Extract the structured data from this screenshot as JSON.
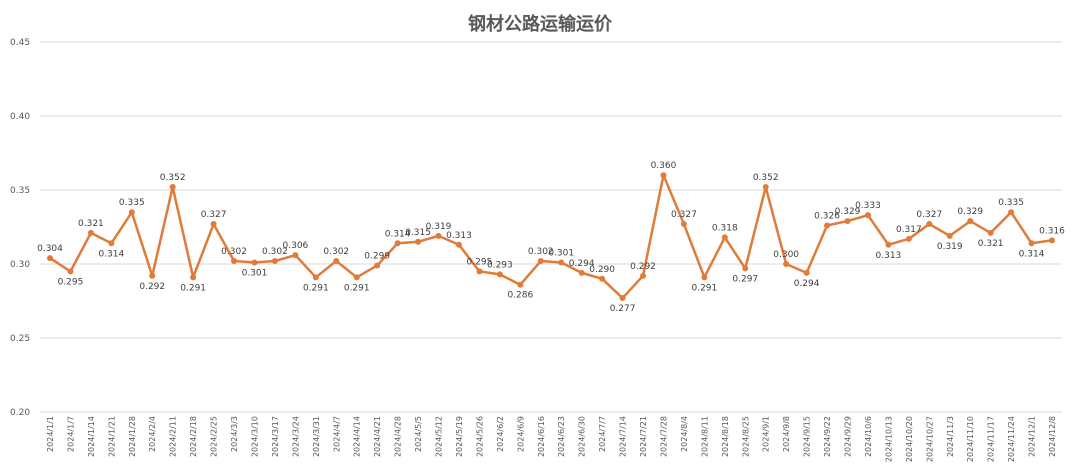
{
  "chart_data": {
    "type": "line",
    "title": "钢材公路运输运价",
    "xlabel": "",
    "ylabel": "",
    "ylim": [
      0.2,
      0.45
    ],
    "yticks": [
      "0.20",
      "0.25",
      "0.30",
      "0.35",
      "0.40",
      "0.45"
    ],
    "grid": true,
    "legend": "none",
    "line_color": "#E07B39",
    "x": [
      "2024/1/1",
      "2024/1/7",
      "2024/1/14",
      "2024/1/21",
      "2024/1/28",
      "2024/2/4",
      "2024/2/11",
      "2024/2/18",
      "2024/2/25",
      "2024/3/3",
      "2024/3/10",
      "2024/3/17",
      "2024/3/24",
      "2024/3/31",
      "2024/4/7",
      "2024/4/14",
      "2024/4/21",
      "2024/4/28",
      "2024/5/5",
      "2024/5/12",
      "2024/5/19",
      "2024/5/26",
      "2024/6/2",
      "2024/6/9",
      "2024/6/16",
      "2024/6/23",
      "2024/6/30",
      "2024/7/7",
      "2024/7/14",
      "2024/7/21",
      "2024/7/28",
      "2024/8/4",
      "2024/8/11",
      "2024/8/18",
      "2024/8/25",
      "2024/9/1",
      "2024/9/8",
      "2024/9/15",
      "2024/9/22",
      "2024/9/29",
      "2024/10/6",
      "2024/10/13",
      "2024/10/20",
      "2024/10/27",
      "2024/11/3",
      "2024/11/10",
      "2024/11/17",
      "2024/11/24",
      "2024/12/1",
      "2024/12/8"
    ],
    "series": [
      {
        "values": [
          0.304,
          0.295,
          0.321,
          0.314,
          0.335,
          0.292,
          0.352,
          0.291,
          0.327,
          0.302,
          0.301,
          0.302,
          0.306,
          0.291,
          0.302,
          0.291,
          0.299,
          0.314,
          0.315,
          0.319,
          0.313,
          0.295,
          0.293,
          0.286,
          0.302,
          0.301,
          0.294,
          0.29,
          0.277,
          0.292,
          0.36,
          0.327,
          0.291,
          0.318,
          0.297,
          0.352,
          0.3,
          0.294,
          0.326,
          0.329,
          0.333,
          0.313,
          0.317,
          0.327,
          0.319,
          0.329,
          0.321,
          0.335,
          0.314,
          0.316
        ]
      }
    ]
  }
}
